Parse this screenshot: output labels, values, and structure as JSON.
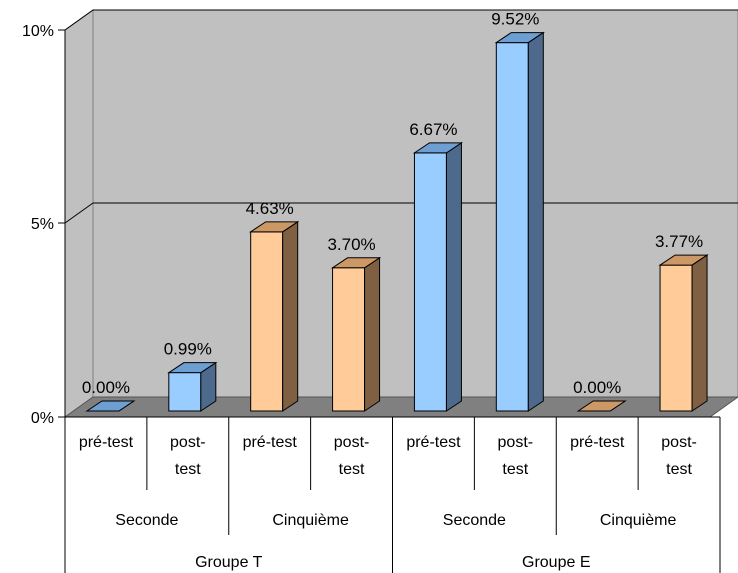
{
  "chart_data": {
    "type": "bar",
    "style": "3d-column",
    "yticks": [
      "0%",
      "5%",
      "10%"
    ],
    "ylim": [
      0,
      10
    ],
    "grid": true,
    "legend": "none",
    "categories": [
      {
        "label": "pré-test",
        "value": 0.0,
        "value_label": "0.00%",
        "color": "blue"
      },
      {
        "label": "post-test",
        "value": 0.99,
        "value_label": "0.99%",
        "color": "blue"
      },
      {
        "label": "pré-test",
        "value": 4.63,
        "value_label": "4.63%",
        "color": "orange"
      },
      {
        "label": "post-test",
        "value": 3.7,
        "value_label": "3.70%",
        "color": "orange"
      },
      {
        "label": "pré-test",
        "value": 6.67,
        "value_label": "6.67%",
        "color": "blue"
      },
      {
        "label": "post-test",
        "value": 9.52,
        "value_label": "9.52%",
        "color": "blue"
      },
      {
        "label": "pré-test",
        "value": 0.0,
        "value_label": "0.00%",
        "color": "orange"
      },
      {
        "label": "post-test",
        "value": 3.77,
        "value_label": "3.77%",
        "color": "orange"
      }
    ],
    "level2": [
      "Seconde",
      "Cinquième",
      "Seconde",
      "Cinquième"
    ],
    "level3": [
      "Groupe T",
      "Groupe E"
    ]
  },
  "colors": {
    "blue": {
      "front": "#99CCFF",
      "top": "#6E9FD3",
      "side": "#4D6A8C"
    },
    "orange": {
      "front": "#FFCC99",
      "top": "#CC9966",
      "side": "#7F6042"
    },
    "wall": "#C0C0C0",
    "floor": "#808080"
  }
}
